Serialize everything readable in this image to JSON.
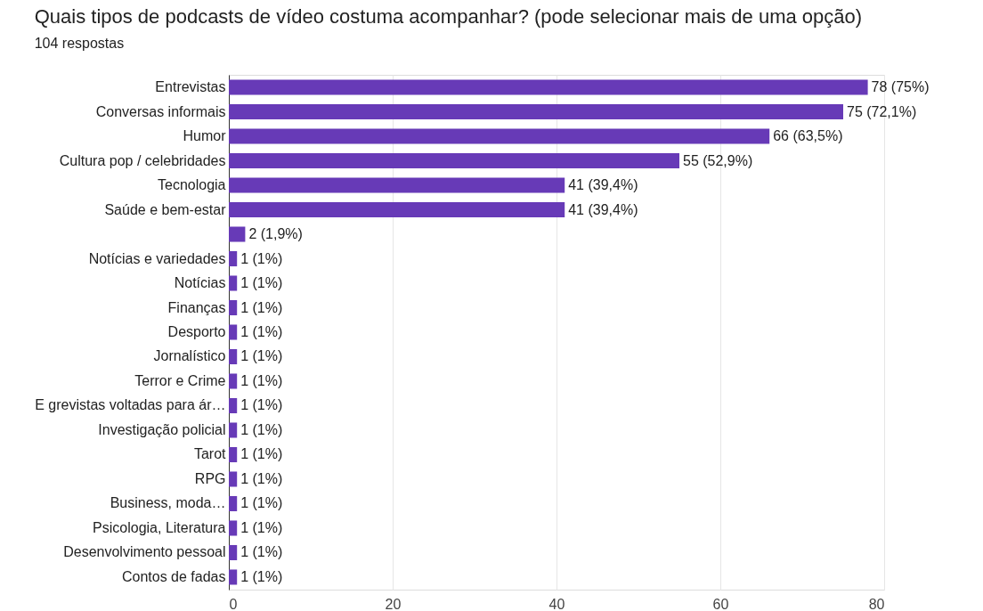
{
  "chart_data": {
    "type": "bar",
    "orientation": "horizontal",
    "title": "Quais tipos de podcasts de vídeo costuma acompanhar? (pode selecionar mais de uma opção)",
    "subtitle": "104 respostas",
    "categories": [
      "Entrevistas",
      "Conversas informais",
      "Humor",
      "Cultura pop / celebridades",
      "Tecnologia",
      "Saúde e bem-estar",
      null,
      "Notícias e variedades",
      "Notícias",
      "Finanças",
      "Desporto",
      "Jornalístico",
      "Terror e Crime",
      "E grevistas voltadas para ár…",
      "Investigação policial",
      "Tarot",
      "RPG",
      "Business, moda…",
      "Psicologia, Literatura",
      "Desenvolvimento pessoal",
      "Contos de fadas"
    ],
    "values": [
      78,
      75,
      66,
      55,
      41,
      41,
      2,
      1,
      1,
      1,
      1,
      1,
      1,
      1,
      1,
      1,
      1,
      1,
      1,
      1,
      1
    ],
    "value_labels": [
      "78 (75%)",
      "75 (72,1%)",
      "66 (63,5%)",
      "55 (52,9%)",
      "41 (39,4%)",
      "41 (39,4%)",
      "2 (1,9%)",
      "1 (1%)",
      "1 (1%)",
      "1 (1%)",
      "1 (1%)",
      "1 (1%)",
      "1 (1%)",
      "1 (1%)",
      "1 (1%)",
      "1 (1%)",
      "1 (1%)",
      "1 (1%)",
      "1 (1%)",
      "1 (1%)",
      "1 (1%)"
    ],
    "color": "#673ab7",
    "xlim": [
      0,
      80
    ],
    "xticks": [
      0,
      20,
      40,
      60,
      80
    ],
    "grid": "x"
  }
}
